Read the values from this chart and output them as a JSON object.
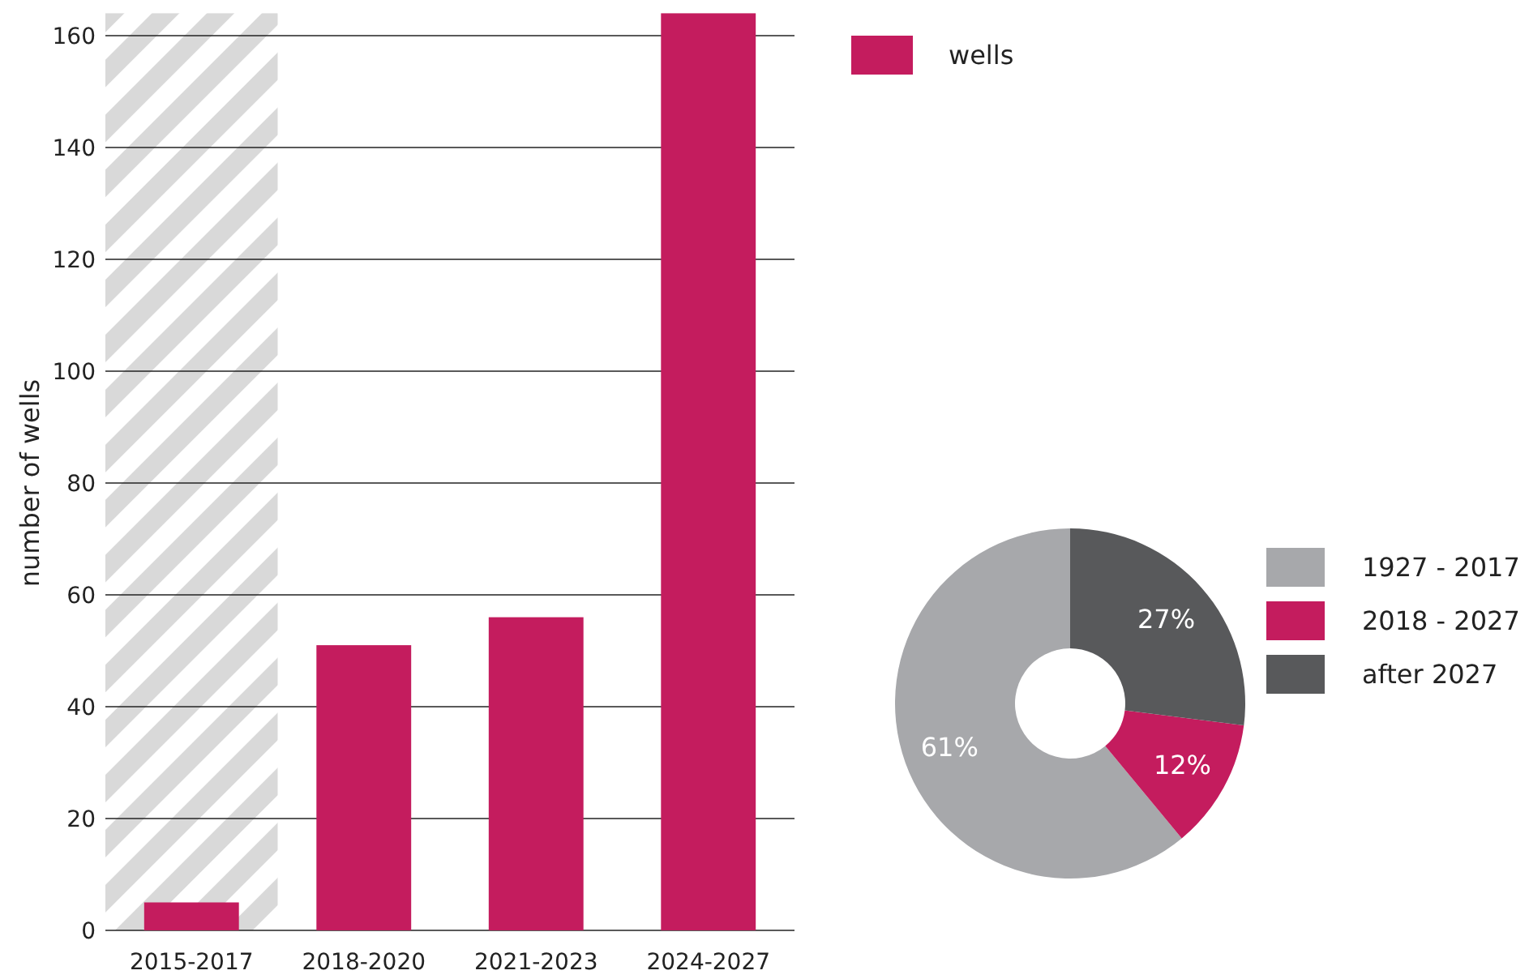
{
  "chart_data": [
    {
      "type": "bar",
      "ylabel": "number of wells",
      "categories": [
        "2015-2017",
        "2018-2020",
        "2021-2023",
        "2024-2027"
      ],
      "series": [
        {
          "name": "wells",
          "color": "#c41c5e",
          "values": [
            5,
            51,
            56,
            164
          ]
        }
      ],
      "ylim": [
        0,
        164
      ],
      "yticks": [
        0,
        20,
        40,
        60,
        80,
        100,
        120,
        140,
        160
      ],
      "grid": "y",
      "legend": "top right",
      "bands": [
        {
          "axis": "x",
          "from": "2015-2017",
          "to": "2015-2017",
          "color": "#d9d9d9"
        }
      ]
    },
    {
      "type": "donut",
      "categories": [
        "1927 - 2017",
        "2018 - 2027",
        "after 2027"
      ],
      "values": [
        61,
        12,
        27
      ],
      "colors": [
        "#a7a8ab",
        "#c41c5e",
        "#58595b"
      ],
      "value_labels": [
        "61%",
        "12%",
        "27%"
      ],
      "legend": "right"
    }
  ]
}
